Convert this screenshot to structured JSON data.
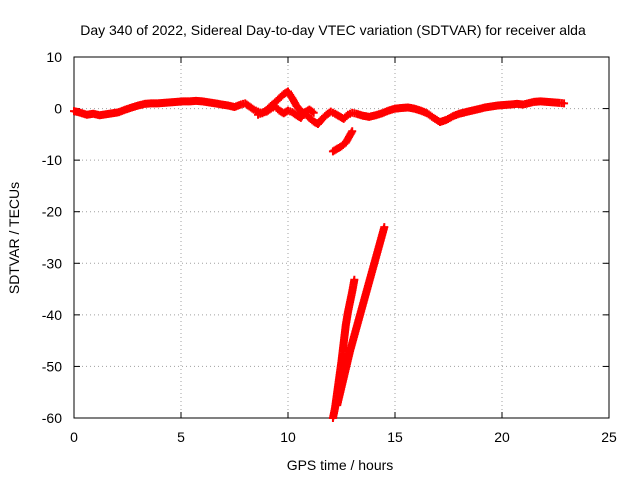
{
  "chart_data": {
    "type": "scatter",
    "title": "Day 340 of 2022, Sidereal Day-to-day VTEC variation (SDTVAR) for receiver alda",
    "xlabel": "GPS time / hours",
    "ylabel": "SDTVAR / TECUs",
    "xlim": [
      0,
      25
    ],
    "ylim": [
      -60,
      10
    ],
    "xticks": [
      "0",
      "5",
      "10",
      "15",
      "20",
      "25"
    ],
    "yticks": [
      "10",
      "0",
      "-10",
      "-20",
      "-30",
      "-40",
      "-50",
      "-60"
    ],
    "grid": true,
    "marker": "+",
    "series_color": "#ff0000",
    "series": [
      {
        "name": "main trace",
        "points": [
          [
            0.0,
            -0.5
          ],
          [
            0.3,
            -0.8
          ],
          [
            0.6,
            -1.2
          ],
          [
            0.9,
            -1.0
          ],
          [
            1.2,
            -1.3
          ],
          [
            1.5,
            -1.1
          ],
          [
            1.8,
            -0.9
          ],
          [
            2.1,
            -0.7
          ],
          [
            2.4,
            -0.2
          ],
          [
            2.7,
            0.2
          ],
          [
            3.0,
            0.6
          ],
          [
            3.3,
            0.9
          ],
          [
            3.6,
            1.0
          ],
          [
            3.9,
            1.0
          ],
          [
            4.2,
            1.1
          ],
          [
            4.5,
            1.2
          ],
          [
            4.8,
            1.3
          ],
          [
            5.1,
            1.4
          ],
          [
            5.4,
            1.4
          ],
          [
            5.7,
            1.5
          ],
          [
            6.0,
            1.4
          ],
          [
            6.3,
            1.2
          ],
          [
            6.6,
            1.0
          ],
          [
            6.9,
            0.8
          ],
          [
            7.2,
            0.6
          ],
          [
            7.5,
            0.3
          ],
          [
            7.8,
            0.8
          ],
          [
            8.0,
            1.0
          ],
          [
            8.2,
            0.4
          ],
          [
            8.4,
            -0.2
          ],
          [
            8.6,
            -0.6
          ],
          [
            8.8,
            -0.9
          ],
          [
            9.0,
            -0.3
          ],
          [
            9.2,
            0.5
          ],
          [
            9.4,
            1.2
          ],
          [
            9.6,
            2.0
          ],
          [
            9.8,
            2.8
          ],
          [
            10.0,
            3.3
          ],
          [
            10.2,
            2.0
          ],
          [
            10.4,
            0.5
          ],
          [
            10.6,
            -0.5
          ],
          [
            10.8,
            -1.0
          ],
          [
            11.0,
            -1.8
          ],
          [
            11.2,
            -2.5
          ],
          [
            11.4,
            -3.0
          ],
          [
            11.6,
            -2.0
          ],
          [
            11.8,
            -1.2
          ],
          [
            12.0,
            -0.6
          ],
          [
            12.2,
            -1.0
          ],
          [
            12.4,
            -1.5
          ],
          [
            12.6,
            -2.0
          ],
          [
            12.8,
            -1.2
          ],
          [
            13.0,
            -0.8
          ],
          [
            13.2,
            -1.0
          ],
          [
            13.5,
            -1.4
          ],
          [
            13.8,
            -1.6
          ],
          [
            14.1,
            -1.3
          ],
          [
            14.4,
            -0.9
          ],
          [
            14.7,
            -0.4
          ],
          [
            15.0,
            0.0
          ],
          [
            15.3,
            0.1
          ],
          [
            15.6,
            0.2
          ],
          [
            15.9,
            0.0
          ],
          [
            16.2,
            -0.4
          ],
          [
            16.5,
            -0.9
          ],
          [
            16.8,
            -1.8
          ],
          [
            17.1,
            -2.6
          ],
          [
            17.4,
            -2.2
          ],
          [
            17.7,
            -1.5
          ],
          [
            18.0,
            -1.0
          ],
          [
            18.3,
            -0.7
          ],
          [
            18.6,
            -0.4
          ],
          [
            18.9,
            -0.1
          ],
          [
            19.2,
            0.2
          ],
          [
            19.5,
            0.4
          ],
          [
            19.8,
            0.6
          ],
          [
            20.1,
            0.7
          ],
          [
            20.4,
            0.8
          ],
          [
            20.7,
            0.9
          ],
          [
            21.0,
            0.8
          ],
          [
            21.5,
            1.3
          ],
          [
            21.8,
            1.4
          ],
          [
            22.1,
            1.3
          ],
          [
            22.4,
            1.2
          ],
          [
            22.7,
            1.1
          ],
          [
            22.9,
            1.0
          ]
        ]
      },
      {
        "name": "secondary trace",
        "points": [
          [
            8.6,
            -1.2
          ],
          [
            8.8,
            -0.8
          ],
          [
            9.0,
            -0.6
          ],
          [
            9.2,
            0.0
          ],
          [
            9.4,
            0.4
          ],
          [
            9.6,
            -0.4
          ],
          [
            9.8,
            -0.9
          ],
          [
            10.0,
            -0.4
          ],
          [
            10.2,
            -0.7
          ],
          [
            10.4,
            -1.3
          ],
          [
            10.6,
            -1.8
          ],
          [
            10.8,
            -0.7
          ],
          [
            11.0,
            -0.2
          ],
          [
            11.2,
            -0.8
          ]
        ]
      },
      {
        "name": "short dip segment",
        "points": [
          [
            12.1,
            -8.3
          ],
          [
            12.3,
            -7.8
          ],
          [
            12.5,
            -7.3
          ],
          [
            12.7,
            -6.6
          ],
          [
            12.85,
            -5.5
          ],
          [
            13.0,
            -4.4
          ]
        ]
      },
      {
        "name": "steep segment A",
        "points": [
          [
            12.1,
            -60.0
          ],
          [
            12.2,
            -58.0
          ],
          [
            12.3,
            -55.0
          ],
          [
            12.4,
            -52.0
          ],
          [
            12.5,
            -49.0
          ],
          [
            12.6,
            -45.5
          ],
          [
            12.7,
            -42.0
          ],
          [
            12.8,
            -39.5
          ],
          [
            12.9,
            -37.5
          ],
          [
            13.0,
            -35.5
          ],
          [
            13.1,
            -33.2
          ]
        ]
      },
      {
        "name": "steep segment B",
        "points": [
          [
            12.3,
            -57.5
          ],
          [
            12.5,
            -54.0
          ],
          [
            12.7,
            -50.5
          ],
          [
            12.9,
            -47.0
          ],
          [
            13.1,
            -44.0
          ],
          [
            13.3,
            -41.0
          ],
          [
            13.5,
            -38.0
          ],
          [
            13.7,
            -35.0
          ],
          [
            13.9,
            -32.0
          ],
          [
            14.1,
            -29.0
          ],
          [
            14.3,
            -26.0
          ],
          [
            14.5,
            -23.0
          ]
        ]
      }
    ]
  }
}
